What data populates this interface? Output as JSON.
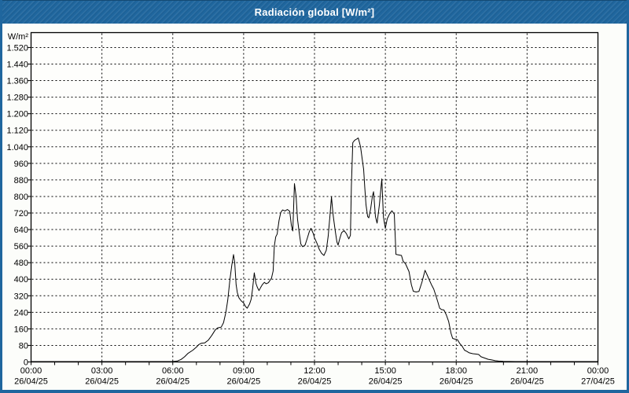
{
  "window": {
    "title": "Radiación global [W/m²]"
  },
  "colors": {
    "titlebar": "#1f669e",
    "window_border": "#1f669e",
    "background": "#fcfdfa",
    "plot_background": "#fefefc",
    "line": "#000000",
    "grid": "#000000",
    "text": "#000000",
    "title_text": "#ffffff"
  },
  "chart_data": {
    "type": "line",
    "title": "Radiación global [W/m²]",
    "xlabel": "",
    "ylabel": "W/m²",
    "unit_label": "W/m²",
    "grid": "dashed",
    "legend": "none",
    "ylim": [
      0,
      1592
    ],
    "ytick_step": 80,
    "ytick_labels": [
      "0",
      "80",
      "160",
      "240",
      "320",
      "400",
      "480",
      "560",
      "640",
      "720",
      "800",
      "880",
      "960",
      "1.040",
      "1.120",
      "1.200",
      "1.280",
      "1.360",
      "1.440",
      "1.520"
    ],
    "xlim_hours": [
      0,
      24
    ],
    "xtick_hours": [
      0,
      3,
      6,
      9,
      12,
      15,
      18,
      21,
      24
    ],
    "xtick_labels": [
      {
        "time": "00:00",
        "date": "26/04/25"
      },
      {
        "time": "03:00",
        "date": "26/04/25"
      },
      {
        "time": "06:00",
        "date": "26/04/25"
      },
      {
        "time": "09:00",
        "date": "26/04/25"
      },
      {
        "time": "12:00",
        "date": "26/04/25"
      },
      {
        "time": "15:00",
        "date": "26/04/25"
      },
      {
        "time": "18:00",
        "date": "26/04/25"
      },
      {
        "time": "21:00",
        "date": "26/04/25"
      },
      {
        "time": "00:00",
        "date": "27/04/25"
      }
    ],
    "minor_xtick_hours": 1,
    "series": [
      {
        "name": "Radiación global",
        "color": "#000000",
        "points": [
          [
            0,
            2
          ],
          [
            0.5,
            2
          ],
          [
            1,
            2
          ],
          [
            1.5,
            2
          ],
          [
            2,
            2
          ],
          [
            2.5,
            2
          ],
          [
            3,
            2
          ],
          [
            3.5,
            2
          ],
          [
            4,
            2
          ],
          [
            4.5,
            2
          ],
          [
            5,
            2
          ],
          [
            5.5,
            2
          ],
          [
            5.8,
            2
          ],
          [
            6.0,
            2
          ],
          [
            6.2,
            5
          ],
          [
            6.35,
            12
          ],
          [
            6.5,
            25
          ],
          [
            6.65,
            42
          ],
          [
            6.85,
            57
          ],
          [
            7.0,
            72
          ],
          [
            7.1,
            84
          ],
          [
            7.2,
            90
          ],
          [
            7.35,
            92
          ],
          [
            7.5,
            105
          ],
          [
            7.65,
            128
          ],
          [
            7.8,
            155
          ],
          [
            7.9,
            165
          ],
          [
            8.05,
            168
          ],
          [
            8.15,
            190
          ],
          [
            8.25,
            240
          ],
          [
            8.33,
            300
          ],
          [
            8.42,
            400
          ],
          [
            8.5,
            470
          ],
          [
            8.57,
            519
          ],
          [
            8.62,
            481
          ],
          [
            8.68,
            374
          ],
          [
            8.73,
            336
          ],
          [
            8.8,
            310
          ],
          [
            8.9,
            295
          ],
          [
            9.0,
            285
          ],
          [
            9.08,
            268
          ],
          [
            9.15,
            260
          ],
          [
            9.25,
            280
          ],
          [
            9.32,
            304
          ],
          [
            9.38,
            355
          ],
          [
            9.45,
            431
          ],
          [
            9.52,
            380
          ],
          [
            9.58,
            361
          ],
          [
            9.65,
            345
          ],
          [
            9.72,
            360
          ],
          [
            9.8,
            375
          ],
          [
            9.88,
            385
          ],
          [
            9.95,
            378
          ],
          [
            10.05,
            383
          ],
          [
            10.12,
            395
          ],
          [
            10.18,
            405
          ],
          [
            10.25,
            440
          ],
          [
            10.3,
            560
          ],
          [
            10.36,
            605
          ],
          [
            10.42,
            618
          ],
          [
            10.5,
            684
          ],
          [
            10.57,
            722
          ],
          [
            10.65,
            735
          ],
          [
            10.75,
            730
          ],
          [
            10.85,
            737
          ],
          [
            10.95,
            728
          ],
          [
            11.02,
            660
          ],
          [
            11.08,
            633
          ],
          [
            11.15,
            862
          ],
          [
            11.22,
            800
          ],
          [
            11.28,
            690
          ],
          [
            11.35,
            627
          ],
          [
            11.42,
            570
          ],
          [
            11.5,
            557
          ],
          [
            11.6,
            565
          ],
          [
            11.7,
            600
          ],
          [
            11.78,
            630
          ],
          [
            11.85,
            646
          ],
          [
            11.95,
            620
          ],
          [
            12.0,
            600
          ],
          [
            12.1,
            575
          ],
          [
            12.2,
            545
          ],
          [
            12.3,
            525
          ],
          [
            12.4,
            515
          ],
          [
            12.5,
            540
          ],
          [
            12.58,
            608
          ],
          [
            12.65,
            700
          ],
          [
            12.72,
            798
          ],
          [
            12.78,
            720
          ],
          [
            12.82,
            684
          ],
          [
            12.88,
            633
          ],
          [
            12.95,
            580
          ],
          [
            13.0,
            565
          ],
          [
            13.08,
            600
          ],
          [
            13.15,
            625
          ],
          [
            13.25,
            635
          ],
          [
            13.35,
            620
          ],
          [
            13.45,
            595
          ],
          [
            13.52,
            612
          ],
          [
            13.56,
            850
          ],
          [
            13.62,
            1060
          ],
          [
            13.7,
            1072
          ],
          [
            13.78,
            1077
          ],
          [
            13.85,
            1083
          ],
          [
            13.9,
            1062
          ],
          [
            13.95,
            1039
          ],
          [
            14.02,
            980
          ],
          [
            14.08,
            931
          ],
          [
            14.13,
            840
          ],
          [
            14.18,
            760
          ],
          [
            14.25,
            703
          ],
          [
            14.3,
            697
          ],
          [
            14.38,
            742
          ],
          [
            14.45,
            800
          ],
          [
            14.5,
            823
          ],
          [
            14.58,
            703
          ],
          [
            14.65,
            671
          ],
          [
            14.75,
            762
          ],
          [
            14.85,
            885
          ],
          [
            14.92,
            700
          ],
          [
            15.0,
            646
          ],
          [
            15.08,
            692
          ],
          [
            15.18,
            716
          ],
          [
            15.28,
            731
          ],
          [
            15.38,
            714
          ],
          [
            15.45,
            520
          ],
          [
            15.55,
            518
          ],
          [
            15.68,
            515
          ],
          [
            15.75,
            487
          ],
          [
            15.85,
            475
          ],
          [
            16.0,
            437
          ],
          [
            16.1,
            374
          ],
          [
            16.18,
            342
          ],
          [
            16.3,
            338
          ],
          [
            16.42,
            341
          ],
          [
            16.55,
            386
          ],
          [
            16.68,
            443
          ],
          [
            16.78,
            418
          ],
          [
            16.85,
            399
          ],
          [
            16.95,
            374
          ],
          [
            17.05,
            352
          ],
          [
            17.15,
            317
          ],
          [
            17.22,
            291
          ],
          [
            17.3,
            260
          ],
          [
            17.38,
            253
          ],
          [
            17.48,
            251
          ],
          [
            17.58,
            228
          ],
          [
            17.68,
            196
          ],
          [
            17.78,
            139
          ],
          [
            17.85,
            114
          ],
          [
            17.95,
            110
          ],
          [
            18.05,
            108
          ],
          [
            18.15,
            89
          ],
          [
            18.25,
            76
          ],
          [
            18.35,
            57
          ],
          [
            18.45,
            51
          ],
          [
            18.55,
            44
          ],
          [
            18.7,
            40
          ],
          [
            18.85,
            38
          ],
          [
            18.95,
            36
          ],
          [
            19.05,
            25
          ],
          [
            19.2,
            19
          ],
          [
            19.35,
            13
          ],
          [
            19.5,
            10
          ],
          [
            19.65,
            6
          ],
          [
            19.8,
            4
          ],
          [
            20.0,
            3
          ],
          [
            20.5,
            2
          ],
          [
            21.0,
            2
          ],
          [
            21.5,
            2
          ],
          [
            22.0,
            2
          ],
          [
            22.5,
            2
          ],
          [
            23.0,
            2
          ],
          [
            23.5,
            2
          ],
          [
            24.0,
            2
          ]
        ]
      }
    ]
  }
}
